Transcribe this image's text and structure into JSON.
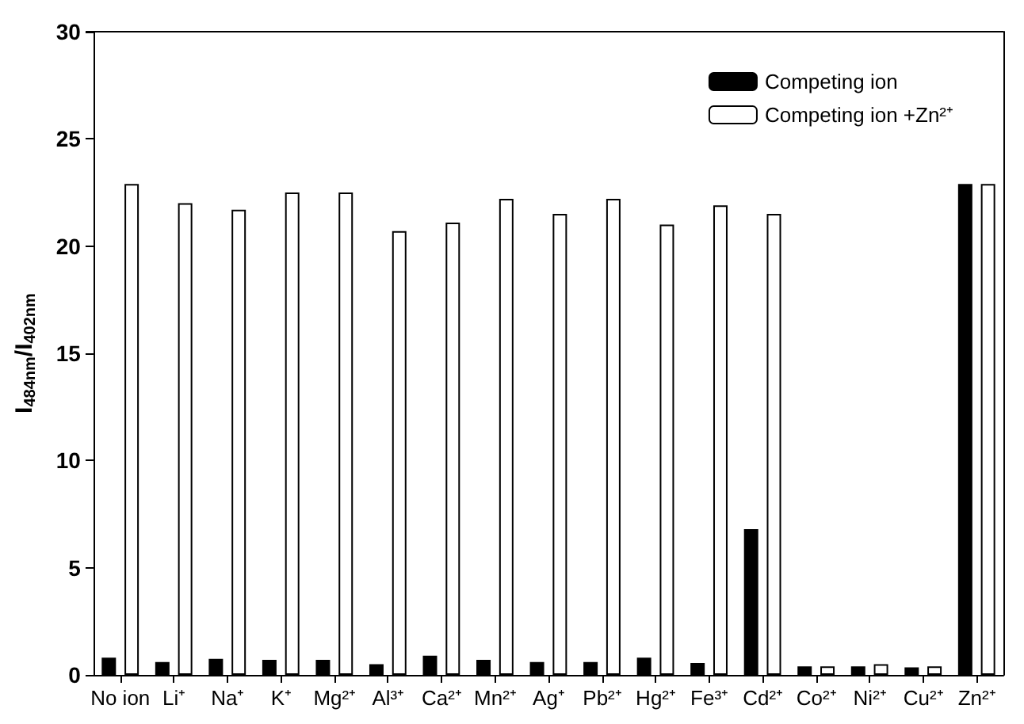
{
  "chart_data": {
    "type": "bar",
    "ylabel": "I$_{484nm}$/I$_{402nm}$",
    "categories": [
      "No ion",
      "Li⁺",
      "Na⁺",
      "K⁺",
      "Mg²⁺",
      "Al³⁺",
      "Ca²⁺",
      "Mn²⁺",
      "Ag⁺",
      "Pb²⁺",
      "Hg²⁺",
      "Fe³⁺",
      "Cd²⁺",
      "Co²⁺",
      "Ni²⁺",
      "Cu²⁺",
      "Zn²⁺"
    ],
    "series": [
      {
        "name": "Competing ion",
        "color": "#000000",
        "values": [
          0.8,
          0.6,
          0.75,
          0.7,
          0.7,
          0.5,
          0.9,
          0.7,
          0.6,
          0.6,
          0.8,
          0.55,
          6.8,
          0.4,
          0.4,
          0.35,
          22.9
        ]
      },
      {
        "name": "Competing ion +Zn²⁺",
        "color": "#ffffff",
        "values": [
          22.9,
          22.0,
          21.7,
          22.5,
          22.5,
          20.7,
          21.1,
          22.2,
          21.5,
          22.2,
          21.0,
          21.9,
          21.5,
          0.4,
          0.5,
          0.4,
          22.9
        ]
      }
    ],
    "ylim": [
      0,
      30
    ],
    "yticks": [
      0,
      5,
      10,
      15,
      20,
      25,
      30
    ],
    "grid": false,
    "legend": "top right"
  }
}
